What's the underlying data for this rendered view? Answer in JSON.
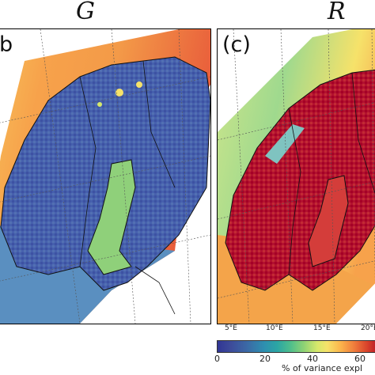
{
  "panels": [
    {
      "title": "G",
      "letter": "b"
    },
    {
      "title": "R",
      "letter": "(c)"
    }
  ],
  "x_ticks": [
    "5°E",
    "10°E",
    "15°E",
    "20°E"
  ],
  "colors": {
    "low": "#313695",
    "mid": "#f6e26a",
    "high": "#a50026",
    "coast": "#111111"
  },
  "chart_data": {
    "type": "heatmap",
    "colorbar": {
      "label": "% of variance expl",
      "ticks": [
        "0",
        "20",
        "40",
        "60"
      ],
      "range": [
        0,
        70
      ],
      "colormap": "Spectral_r"
    }
  }
}
